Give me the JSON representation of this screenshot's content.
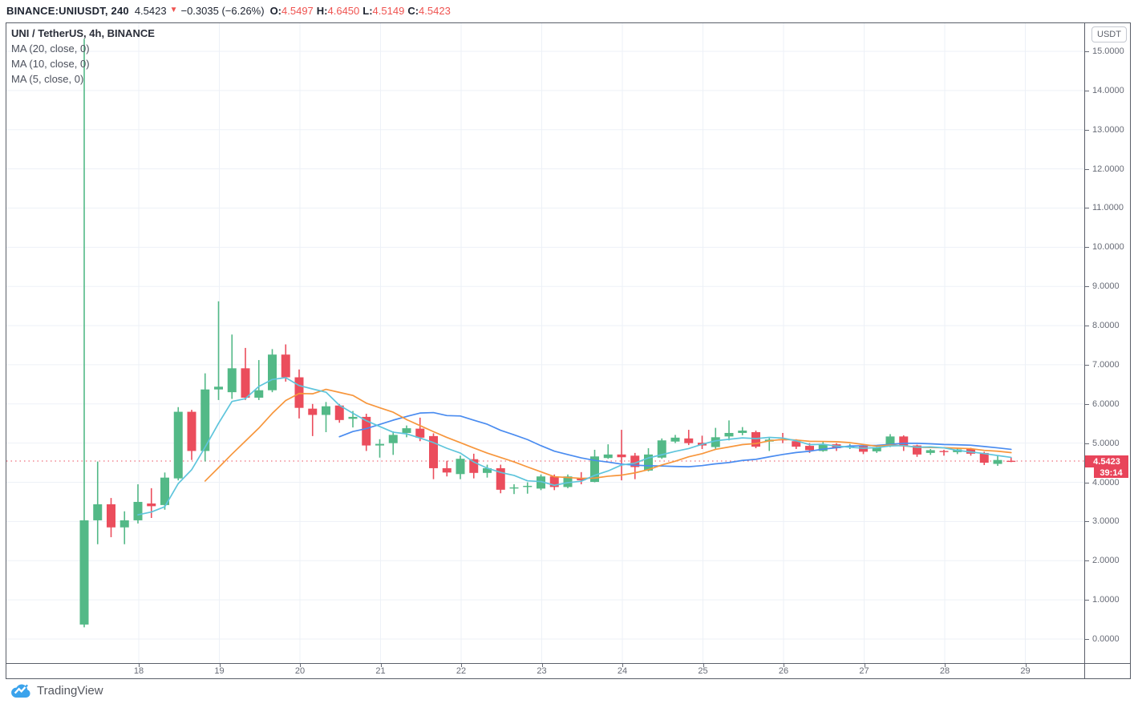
{
  "header": {
    "symbol_text": "BINANCE:UNIUSDT, 240",
    "last_price": "4.5423",
    "direction_icon": "▼",
    "change": "−0.3035 (−6.26%)",
    "ohlc": [
      {
        "label": "O:",
        "value": "4.5497"
      },
      {
        "label": "H:",
        "value": "4.6450"
      },
      {
        "label": "L:",
        "value": "4.5149"
      },
      {
        "label": "C:",
        "value": "4.5423"
      }
    ]
  },
  "legend": {
    "title": "UNI / TetherUS, 4h, BINANCE",
    "indicators": [
      {
        "label": "MA (20, close, 0)",
        "period": 20
      },
      {
        "label": "MA (10, close, 0)",
        "period": 10
      },
      {
        "label": "MA (5, close, 0)",
        "period": 5
      }
    ]
  },
  "price_axis": {
    "currency_button": "USDT",
    "tick_values": [
      15,
      14,
      13,
      12,
      11,
      10,
      9,
      8,
      7,
      6,
      5,
      4,
      3,
      2,
      1,
      0
    ],
    "tick_decimals": 4,
    "price_label": "4.5423",
    "countdown": "39:14"
  },
  "time_axis": {
    "day_labels": [
      "18",
      "19",
      "20",
      "21",
      "22",
      "23",
      "24",
      "25",
      "26",
      "27",
      "28",
      "29"
    ]
  },
  "watermark": {
    "text": "TradingView"
  },
  "colors": {
    "up": "#53b987",
    "down": "#eb4d5c",
    "ma20": "#4a8cf0",
    "ma10": "#f7963c",
    "ma5": "#5fc5dc",
    "grid": "#edf1f7",
    "current_price_line": "#eb4d5c",
    "price_label_bg": "#e8445a",
    "ohlc_value_red": "#ef5350",
    "axis_text": "#676b76"
  },
  "chart_data": {
    "type": "candlestick",
    "title": "UNI / TetherUS, 4h, BINANCE",
    "symbol": "UNI/USDT",
    "exchange": "BINANCE",
    "interval": "4h",
    "legend_position": "top-left",
    "grid": true,
    "ylim": [
      0,
      15.72
    ],
    "yticks_step": 1,
    "x_day_labels": [
      18,
      19,
      20,
      21,
      22,
      23,
      24,
      25,
      26,
      27,
      28,
      29
    ],
    "candles_per_day": 6,
    "first_day_label_candle_index": 4,
    "current_price": 4.5423,
    "countdown": "39:14",
    "series": [
      {
        "name": "MA (20, close, 0)",
        "period": 20,
        "type": "sma_of_close"
      },
      {
        "name": "MA (10, close, 0)",
        "period": 10,
        "type": "sma_of_close"
      },
      {
        "name": "MA (5, close, 0)",
        "period": 5,
        "type": "sma_of_close"
      }
    ],
    "ohlc": [
      [
        0.37,
        15.32,
        0.3,
        3.03
      ],
      [
        3.03,
        4.53,
        2.42,
        3.44
      ],
      [
        3.44,
        3.6,
        2.6,
        2.85
      ],
      [
        2.85,
        3.26,
        2.42,
        3.03
      ],
      [
        3.03,
        3.95,
        2.95,
        3.5
      ],
      [
        3.46,
        3.85,
        3.09,
        3.39
      ],
      [
        3.42,
        4.25,
        3.3,
        4.12
      ],
      [
        4.1,
        5.92,
        4.05,
        5.8
      ],
      [
        5.8,
        5.85,
        4.57,
        4.8
      ],
      [
        4.8,
        6.78,
        4.53,
        6.37
      ],
      [
        6.37,
        8.62,
        6.1,
        6.44
      ],
      [
        6.3,
        7.77,
        6.13,
        6.91
      ],
      [
        6.91,
        7.43,
        6.1,
        6.16
      ],
      [
        6.16,
        7.12,
        6.1,
        6.35
      ],
      [
        6.35,
        7.4,
        6.3,
        7.26
      ],
      [
        7.26,
        7.52,
        6.57,
        6.68
      ],
      [
        6.68,
        6.88,
        5.63,
        5.9
      ],
      [
        5.88,
        6.0,
        5.18,
        5.72
      ],
      [
        5.72,
        6.05,
        5.28,
        5.94
      ],
      [
        5.96,
        6.0,
        5.52,
        5.59
      ],
      [
        5.62,
        5.82,
        5.4,
        5.67
      ],
      [
        5.67,
        5.75,
        4.8,
        4.94
      ],
      [
        4.94,
        5.1,
        4.63,
        4.98
      ],
      [
        5.0,
        5.3,
        4.7,
        5.21
      ],
      [
        5.26,
        5.45,
        5.15,
        5.38
      ],
      [
        5.37,
        5.65,
        5.05,
        5.14
      ],
      [
        5.18,
        5.25,
        4.08,
        4.36
      ],
      [
        4.36,
        4.55,
        4.15,
        4.25
      ],
      [
        4.21,
        4.68,
        4.08,
        4.6
      ],
      [
        4.59,
        4.73,
        4.1,
        4.24
      ],
      [
        4.24,
        4.45,
        4.12,
        4.36
      ],
      [
        4.36,
        4.45,
        3.72,
        3.81
      ],
      [
        3.85,
        3.95,
        3.7,
        3.87
      ],
      [
        3.88,
        4.0,
        3.71,
        3.91
      ],
      [
        3.84,
        4.2,
        3.8,
        4.15
      ],
      [
        4.15,
        4.2,
        3.8,
        3.88
      ],
      [
        3.88,
        4.2,
        3.85,
        4.15
      ],
      [
        4.11,
        4.26,
        3.95,
        4.05
      ],
      [
        4.01,
        4.83,
        4.0,
        4.66
      ],
      [
        4.62,
        4.97,
        4.6,
        4.71
      ],
      [
        4.71,
        5.34,
        4.05,
        4.64
      ],
      [
        4.68,
        4.75,
        4.08,
        4.39
      ],
      [
        4.3,
        4.87,
        4.28,
        4.71
      ],
      [
        4.63,
        5.12,
        4.6,
        5.07
      ],
      [
        5.04,
        5.21,
        5.0,
        5.14
      ],
      [
        5.12,
        5.34,
        4.95,
        5.0
      ],
      [
        5.01,
        5.19,
        4.85,
        4.94
      ],
      [
        4.9,
        5.39,
        4.85,
        5.15
      ],
      [
        5.17,
        5.58,
        5.07,
        5.26
      ],
      [
        5.26,
        5.41,
        5.2,
        5.32
      ],
      [
        5.28,
        5.32,
        4.87,
        4.91
      ],
      [
        5.04,
        5.15,
        4.8,
        5.09
      ],
      [
        5.1,
        5.26,
        5.0,
        5.07
      ],
      [
        5.05,
        5.1,
        4.85,
        4.91
      ],
      [
        4.93,
        5.0,
        4.75,
        4.82
      ],
      [
        4.8,
        5.05,
        4.78,
        4.96
      ],
      [
        4.97,
        5.0,
        4.8,
        4.87
      ],
      [
        4.9,
        4.98,
        4.85,
        4.92
      ],
      [
        4.92,
        4.95,
        4.72,
        4.78
      ],
      [
        4.79,
        4.93,
        4.75,
        4.9
      ],
      [
        4.95,
        5.23,
        4.9,
        5.17
      ],
      [
        5.17,
        5.2,
        4.8,
        4.92
      ],
      [
        4.94,
        4.96,
        4.65,
        4.71
      ],
      [
        4.75,
        4.85,
        4.7,
        4.82
      ],
      [
        4.8,
        4.83,
        4.68,
        4.78
      ],
      [
        4.77,
        4.88,
        4.72,
        4.84
      ],
      [
        4.85,
        4.88,
        4.68,
        4.73
      ],
      [
        4.75,
        4.78,
        4.44,
        4.5
      ],
      [
        4.47,
        4.68,
        4.42,
        4.57
      ],
      [
        4.5497,
        4.645,
        4.5149,
        4.5423
      ]
    ]
  }
}
